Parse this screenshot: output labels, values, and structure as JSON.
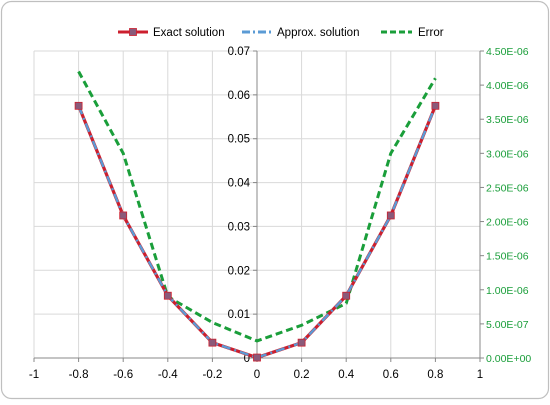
{
  "chart_data": {
    "type": "line",
    "title": "",
    "xlabel": "",
    "ylabel": "",
    "xlim": [
      -1,
      1
    ],
    "ylim_left": [
      0,
      0.07
    ],
    "ylim_right": [
      0,
      4.5e-06
    ],
    "grid": true,
    "legend_position": "top",
    "x_ticks": [
      "-1",
      "-0.8",
      "-0.6",
      "-0.4",
      "-0.2",
      "0",
      "0.2",
      "0.4",
      "0.6",
      "0.8",
      "1"
    ],
    "y_left_ticks": [
      "0",
      "0.01",
      "0.02",
      "0.03",
      "0.04",
      "0.05",
      "0.06",
      "0.07"
    ],
    "y_right_ticks": [
      "0.00E+00",
      "5.00E-07",
      "1.00E-06",
      "1.50E-06",
      "2.00E-06",
      "2.50E-06",
      "3.00E-06",
      "3.50E-06",
      "4.00E-06",
      "4.50E-06"
    ],
    "x": [
      -0.8,
      -0.6,
      -0.4,
      -0.2,
      0,
      0.2,
      0.4,
      0.6,
      0.8
    ],
    "series": [
      {
        "name": "Exact solution",
        "axis": "left",
        "color": "#cc1f2e",
        "style": "solid-square-markers",
        "values": [
          0.0575,
          0.0325,
          0.0142,
          0.0035,
          0.0001,
          0.0035,
          0.0142,
          0.0325,
          0.0575
        ]
      },
      {
        "name": "Approx. solution",
        "axis": "left",
        "color": "#5b9bd5",
        "style": "dash-dot",
        "values": [
          0.0575,
          0.0325,
          0.0142,
          0.0035,
          0.0001,
          0.0035,
          0.0142,
          0.0325,
          0.0575
        ]
      },
      {
        "name": "Error",
        "axis": "right",
        "color": "#1a9e3a",
        "style": "dashed",
        "values": [
          4.2e-06,
          3e-06,
          9e-07,
          5.2e-07,
          2.5e-07,
          4.8e-07,
          8e-07,
          3e-06,
          4.1e-06
        ]
      }
    ]
  }
}
